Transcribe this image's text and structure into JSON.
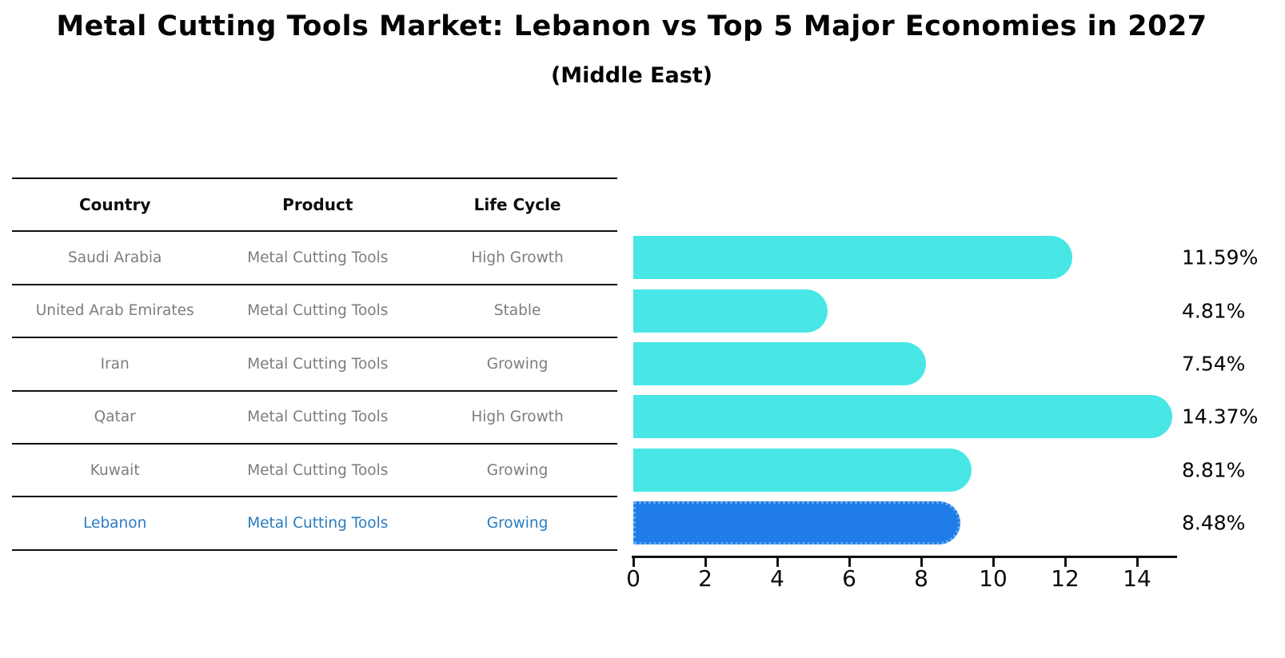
{
  "title": "Metal Cutting Tools Market: Lebanon vs Top 5 Major Economies in 2027",
  "subtitle": "(Middle East)",
  "table": {
    "headers": [
      "Country",
      "Product",
      "Life Cycle"
    ],
    "rows": [
      {
        "country": "Saudi Arabia",
        "product": "Metal Cutting Tools",
        "life_cycle": "High Growth",
        "highlight": false
      },
      {
        "country": "United Arab Emirates",
        "product": "Metal Cutting Tools",
        "life_cycle": "Stable",
        "highlight": false
      },
      {
        "country": "Iran",
        "product": "Metal Cutting Tools",
        "life_cycle": "Growing",
        "highlight": false
      },
      {
        "country": "Qatar",
        "product": "Metal Cutting Tools",
        "life_cycle": "High Growth",
        "highlight": false
      },
      {
        "country": "Kuwait",
        "product": "Metal Cutting Tools",
        "life_cycle": "Growing",
        "highlight": false
      },
      {
        "country": "Lebanon",
        "product": "Metal Cutting Tools",
        "life_cycle": "Growing",
        "highlight": true
      }
    ]
  },
  "chart_data": {
    "type": "bar",
    "orientation": "horizontal",
    "title": "Metal Cutting Tools Market: Lebanon vs Top 5 Major Economies in 2027",
    "subtitle": "(Middle East)",
    "categories": [
      "Saudi Arabia",
      "United Arab Emirates",
      "Iran",
      "Qatar",
      "Kuwait",
      "Lebanon"
    ],
    "values": [
      11.59,
      4.81,
      7.54,
      14.37,
      8.81,
      8.48
    ],
    "value_labels": [
      "11.59%",
      "4.81%",
      "7.54%",
      "14.37%",
      "8.81%",
      "8.48%"
    ],
    "xlabel": "",
    "ylabel": "",
    "xlim": [
      0,
      15.1
    ],
    "x_ticks": [
      0,
      2,
      4,
      6,
      8,
      10,
      12,
      14
    ],
    "grid": false,
    "legend": false,
    "highlight_index": 5,
    "highlight_style": "dotted-border"
  },
  "colors": {
    "bar": "#48e7e5",
    "highlight_bar": "#1f7ce8",
    "highlight_border": "#63a9ef",
    "highlight_text": "#2b7cbf",
    "table_text": "#7d7d7d",
    "ink": "#0d0d0d"
  }
}
